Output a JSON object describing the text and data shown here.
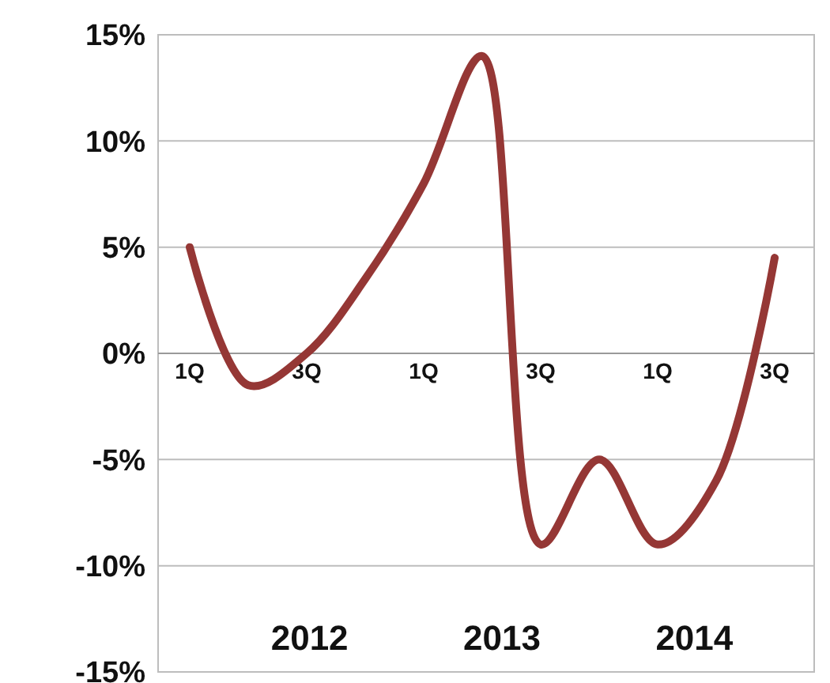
{
  "chart_data": {
    "type": "line",
    "categories": [
      "1Q",
      null,
      "3Q",
      null,
      "1Q",
      null,
      "3Q",
      null,
      "1Q",
      null,
      "3Q"
    ],
    "series": [
      {
        "color": "#953735",
        "values": [
          5,
          -1.5,
          0,
          3.5,
          8,
          14,
          -9,
          -5,
          -9,
          -6,
          4.5
        ]
      }
    ],
    "ylim": [
      -15,
      15
    ],
    "yticks": [
      {
        "value": -15,
        "label": "-15%"
      },
      {
        "value": -10,
        "label": "-10%"
      },
      {
        "value": -5,
        "label": "-5%"
      },
      {
        "value": 0,
        "label": "0%"
      },
      {
        "value": 5,
        "label": "5%"
      },
      {
        "value": 10,
        "label": "10%"
      },
      {
        "value": 15,
        "label": "15%"
      }
    ],
    "grid": "y",
    "marker": "none",
    "line_style": "solid",
    "annotations": [
      "2012",
      "2013",
      "2014"
    ]
  }
}
